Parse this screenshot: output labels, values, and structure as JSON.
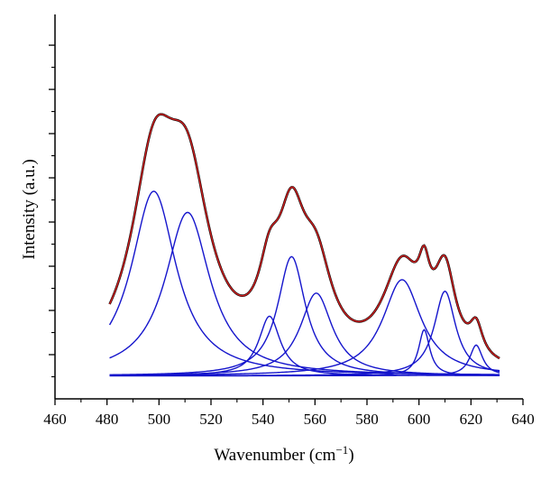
{
  "chart_data": {
    "type": "line",
    "title": "",
    "xlabel": "Wavenumber (cm",
    "xlabel_sup": "−1",
    "xlabel_end": ")",
    "ylabel": "Intensity (a.u.)",
    "xlim": [
      460,
      640
    ],
    "ylim": [
      0,
      1
    ],
    "x_ticks": [
      "460",
      "480",
      "500",
      "520",
      "540",
      "560",
      "580",
      "600",
      "620",
      "640"
    ],
    "y_ticks_labeled": false,
    "grid": false,
    "baseline": 0.06,
    "x_range": [
      481,
      631
    ],
    "components": [
      {
        "center": 498,
        "height": 0.48,
        "width": 10.5
      },
      {
        "center": 511,
        "height": 0.425,
        "width": 10.5
      },
      {
        "center": 542.5,
        "height": 0.155,
        "width": 5.0
      },
      {
        "center": 551,
        "height": 0.31,
        "width": 6.5
      },
      {
        "center": 560.5,
        "height": 0.215,
        "width": 7.5
      },
      {
        "center": 593.5,
        "height": 0.25,
        "width": 9.0
      },
      {
        "center": 602,
        "height": 0.12,
        "width": 2.6
      },
      {
        "center": 610,
        "height": 0.22,
        "width": 5.0
      },
      {
        "center": 622,
        "height": 0.08,
        "width": 3.0
      }
    ],
    "series": [
      {
        "color": "#000000",
        "role": "measured"
      },
      {
        "color": "#cc1f1f",
        "role": "fit-envelope"
      },
      {
        "color": "#1515cc",
        "role": "components"
      }
    ]
  }
}
